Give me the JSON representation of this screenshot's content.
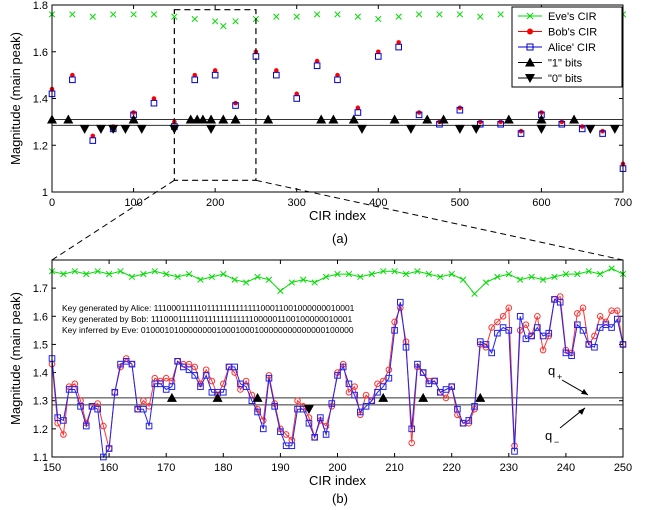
{
  "chart_data": [
    {
      "type": "scatter",
      "panel_label": "(a)",
      "xlabel": "CIR index",
      "ylabel": "Magnitude (main peak)",
      "xlim": [
        0,
        700
      ],
      "ylim": [
        1,
        1.8
      ],
      "xticks": [
        0,
        100,
        200,
        300,
        400,
        500,
        600,
        700
      ],
      "yticks": [
        1,
        1.2,
        1.4,
        1.6,
        1.8
      ],
      "legend_position": "top-right",
      "legend": [
        "Eve's CIR",
        "Bob's CIR",
        "Alice' CIR",
        "\"1\" bits",
        "\"0\" bits"
      ],
      "thresholds": [
        1.31,
        1.285
      ],
      "zoom_box": {
        "x": [
          150,
          250
        ],
        "y": [
          1.05,
          1.78
        ]
      },
      "series": [
        {
          "name": "Eve's CIR",
          "marker": "x",
          "color": "#00dd00",
          "x": [
            0,
            25,
            50,
            75,
            100,
            125,
            150,
            175,
            200,
            210,
            225,
            250,
            275,
            300,
            325,
            350,
            375,
            400,
            425,
            450,
            475,
            500,
            525,
            550,
            575,
            600,
            625,
            650,
            675,
            700
          ],
          "values": [
            1.76,
            1.76,
            1.75,
            1.76,
            1.76,
            1.76,
            1.75,
            1.74,
            1.73,
            1.71,
            1.73,
            1.74,
            1.75,
            1.75,
            1.76,
            1.76,
            1.75,
            1.74,
            1.75,
            1.76,
            1.76,
            1.76,
            1.75,
            1.76,
            1.76,
            1.75,
            1.76,
            1.76,
            1.75,
            1.76
          ]
        },
        {
          "name": "Bob's CIR",
          "marker": "dot",
          "color": "#ff0000",
          "x": [
            0,
            25,
            50,
            75,
            100,
            125,
            150,
            175,
            200,
            225,
            250,
            275,
            300,
            325,
            350,
            375,
            400,
            425,
            450,
            475,
            500,
            525,
            550,
            575,
            600,
            625,
            650,
            675,
            700
          ],
          "values": [
            1.44,
            1.5,
            1.24,
            1.28,
            1.34,
            1.4,
            1.3,
            1.5,
            1.52,
            1.38,
            1.6,
            1.52,
            1.42,
            1.56,
            1.5,
            1.36,
            1.6,
            1.64,
            1.34,
            1.3,
            1.36,
            1.3,
            1.3,
            1.26,
            1.34,
            1.3,
            1.28,
            1.26,
            1.12
          ]
        },
        {
          "name": "Alice' CIR",
          "marker": "square",
          "color": "#0000cc",
          "x": [
            0,
            25,
            50,
            75,
            100,
            125,
            150,
            175,
            200,
            225,
            250,
            275,
            300,
            325,
            350,
            375,
            400,
            425,
            450,
            475,
            500,
            525,
            550,
            575,
            600,
            625,
            650,
            675,
            700
          ],
          "values": [
            1.42,
            1.48,
            1.22,
            1.27,
            1.33,
            1.38,
            1.28,
            1.48,
            1.5,
            1.37,
            1.58,
            1.5,
            1.4,
            1.54,
            1.48,
            1.34,
            1.58,
            1.62,
            1.33,
            1.29,
            1.35,
            1.29,
            1.29,
            1.25,
            1.33,
            1.29,
            1.27,
            1.25,
            1.1
          ]
        },
        {
          "name": "\"1\" bits",
          "marker": "triangle-up",
          "color": "#000000",
          "x": [
            0,
            20,
            100,
            170,
            178,
            185,
            195,
            210,
            225,
            265,
            330,
            345,
            370,
            420,
            460,
            480,
            560,
            600,
            640
          ],
          "values": [
            1.31,
            1.31,
            1.31,
            1.31,
            1.31,
            1.31,
            1.31,
            1.31,
            1.31,
            1.31,
            1.31,
            1.31,
            1.31,
            1.31,
            1.31,
            1.31,
            1.31,
            1.31,
            1.31
          ]
        },
        {
          "name": "\"0\" bits",
          "marker": "triangle-down",
          "color": "#000000",
          "x": [
            40,
            60,
            75,
            90,
            110,
            150,
            195,
            380,
            440,
            500,
            520,
            600,
            660,
            690
          ],
          "values": [
            1.27,
            1.27,
            1.27,
            1.27,
            1.27,
            1.27,
            1.27,
            1.27,
            1.27,
            1.27,
            1.27,
            1.27,
            1.27,
            1.27
          ]
        }
      ]
    },
    {
      "type": "line",
      "panel_label": "(b)",
      "xlabel": "CIR index",
      "ylabel": "Magnitude (main peak)",
      "xlim": [
        150,
        250
      ],
      "ylim": [
        1.1,
        1.8
      ],
      "xticks": [
        150,
        160,
        170,
        180,
        190,
        200,
        210,
        220,
        230,
        240,
        250
      ],
      "yticks": [
        1.1,
        1.2,
        1.3,
        1.4,
        1.5,
        1.6,
        1.7
      ],
      "thresholds": [
        1.31,
        1.285
      ],
      "annotations": [
        "q+",
        "q−"
      ],
      "key_text": [
        "Key generated by Alice: 111000111110111111111111100011001000000010001",
        "Key generated by Bob:  111000111110111111111111000001100100000010001",
        "Key inferred by Eve:     010001010000000010001000100000000000000100000"
      ],
      "series": [
        {
          "name": "Eve's CIR",
          "marker": "x",
          "color": "#00dd00",
          "x": [
            150,
            152,
            154,
            156,
            158,
            160,
            162,
            164,
            166,
            168,
            170,
            172,
            174,
            176,
            178,
            180,
            182,
            184,
            186,
            188,
            190,
            192,
            194,
            196,
            198,
            200,
            202,
            204,
            206,
            208,
            210,
            212,
            214,
            216,
            218,
            220,
            222,
            224,
            226,
            228,
            230,
            232,
            234,
            236,
            238,
            240,
            242,
            244,
            246,
            248,
            250
          ],
          "values": [
            1.76,
            1.75,
            1.76,
            1.75,
            1.76,
            1.75,
            1.76,
            1.74,
            1.75,
            1.76,
            1.75,
            1.74,
            1.75,
            1.73,
            1.74,
            1.75,
            1.73,
            1.72,
            1.74,
            1.73,
            1.69,
            1.72,
            1.73,
            1.72,
            1.74,
            1.75,
            1.75,
            1.74,
            1.75,
            1.76,
            1.76,
            1.75,
            1.76,
            1.75,
            1.74,
            1.75,
            1.73,
            1.68,
            1.72,
            1.74,
            1.75,
            1.73,
            1.74,
            1.73,
            1.74,
            1.75,
            1.75,
            1.76,
            1.75,
            1.77,
            1.75
          ]
        },
        {
          "name": "Bob's CIR",
          "marker": "circle",
          "color": "#ff3333",
          "x": [
            150,
            151,
            152,
            153,
            154,
            155,
            156,
            157,
            158,
            159,
            160,
            161,
            162,
            163,
            164,
            165,
            166,
            167,
            168,
            169,
            170,
            171,
            172,
            173,
            174,
            175,
            176,
            177,
            178,
            179,
            180,
            181,
            182,
            183,
            184,
            185,
            186,
            187,
            188,
            189,
            190,
            191,
            192,
            193,
            194,
            195,
            196,
            197,
            198,
            199,
            200,
            201,
            202,
            203,
            204,
            205,
            206,
            207,
            208,
            209,
            210,
            211,
            212,
            213,
            214,
            215,
            216,
            217,
            218,
            219,
            220,
            221,
            222,
            223,
            224,
            225,
            226,
            227,
            228,
            229,
            230,
            231,
            232,
            233,
            234,
            235,
            236,
            237,
            238,
            239,
            240,
            241,
            242,
            243,
            244,
            245,
            246,
            247,
            248,
            249,
            250
          ],
          "values": [
            1.43,
            1.22,
            1.18,
            1.35,
            1.36,
            1.3,
            1.22,
            1.28,
            1.29,
            1.21,
            1.13,
            1.33,
            1.42,
            1.45,
            1.43,
            1.27,
            1.3,
            1.28,
            1.38,
            1.37,
            1.38,
            1.37,
            1.44,
            1.43,
            1.43,
            1.42,
            1.36,
            1.41,
            1.37,
            1.32,
            1.36,
            1.42,
            1.4,
            1.34,
            1.37,
            1.32,
            1.27,
            1.23,
            1.39,
            1.29,
            1.2,
            1.18,
            1.16,
            1.3,
            1.28,
            1.24,
            1.17,
            1.23,
            1.21,
            1.28,
            1.4,
            1.43,
            1.33,
            1.35,
            1.25,
            1.32,
            1.3,
            1.36,
            1.37,
            1.41,
            1.58,
            1.63,
            1.51,
            1.15,
            1.42,
            1.4,
            1.37,
            1.37,
            1.33,
            1.31,
            1.35,
            1.25,
            1.22,
            1.22,
            1.27,
            1.5,
            1.49,
            1.56,
            1.58,
            1.6,
            1.63,
            1.14,
            1.55,
            1.57,
            1.53,
            1.6,
            1.48,
            1.53,
            1.66,
            1.67,
            1.48,
            1.47,
            1.61,
            1.63,
            1.5,
            1.53,
            1.6,
            1.58,
            1.62,
            1.62,
            1.5
          ]
        },
        {
          "name": "Alice' CIR",
          "marker": "square",
          "color": "#2222ee",
          "x": [
            150,
            151,
            152,
            153,
            154,
            155,
            156,
            157,
            158,
            159,
            160,
            161,
            162,
            163,
            164,
            165,
            166,
            167,
            168,
            169,
            170,
            171,
            172,
            173,
            174,
            175,
            176,
            177,
            178,
            179,
            180,
            181,
            182,
            183,
            184,
            185,
            186,
            187,
            188,
            189,
            190,
            191,
            192,
            193,
            194,
            195,
            196,
            197,
            198,
            199,
            200,
            201,
            202,
            203,
            204,
            205,
            206,
            207,
            208,
            209,
            210,
            211,
            212,
            213,
            214,
            215,
            216,
            217,
            218,
            219,
            220,
            221,
            222,
            223,
            224,
            225,
            226,
            227,
            228,
            229,
            230,
            231,
            232,
            233,
            234,
            235,
            236,
            237,
            238,
            239,
            240,
            241,
            242,
            243,
            244,
            245,
            246,
            247,
            248,
            249,
            250
          ],
          "values": [
            1.45,
            1.24,
            1.23,
            1.34,
            1.34,
            1.28,
            1.21,
            1.28,
            1.27,
            1.1,
            1.13,
            1.33,
            1.43,
            1.44,
            1.43,
            1.27,
            1.27,
            1.21,
            1.36,
            1.36,
            1.34,
            1.35,
            1.44,
            1.42,
            1.41,
            1.39,
            1.35,
            1.39,
            1.33,
            1.33,
            1.33,
            1.42,
            1.42,
            1.36,
            1.35,
            1.3,
            1.26,
            1.2,
            1.38,
            1.28,
            1.19,
            1.14,
            1.14,
            1.27,
            1.27,
            1.22,
            1.17,
            1.24,
            1.18,
            1.29,
            1.39,
            1.42,
            1.36,
            1.32,
            1.26,
            1.28,
            1.3,
            1.33,
            1.35,
            1.38,
            1.55,
            1.65,
            1.49,
            1.2,
            1.43,
            1.4,
            1.36,
            1.37,
            1.33,
            1.34,
            1.35,
            1.27,
            1.22,
            1.23,
            1.28,
            1.51,
            1.5,
            1.47,
            1.54,
            1.56,
            1.55,
            1.12,
            1.6,
            1.52,
            1.53,
            1.56,
            1.53,
            1.54,
            1.66,
            1.65,
            1.47,
            1.46,
            1.57,
            1.55,
            1.5,
            1.49,
            1.56,
            1.57,
            1.56,
            1.59,
            1.5
          ]
        },
        {
          "name": "\"1\" bits",
          "marker": "triangle-up",
          "color": "#000000",
          "x": [
            171,
            179,
            186,
            208,
            215,
            225
          ],
          "values": [
            1.31,
            1.31,
            1.31,
            1.31,
            1.31,
            1.31
          ]
        },
        {
          "name": "\"0\" bits",
          "marker": "triangle-down",
          "color": "#000000",
          "x": [
            195
          ],
          "values": [
            1.27
          ]
        }
      ]
    }
  ]
}
